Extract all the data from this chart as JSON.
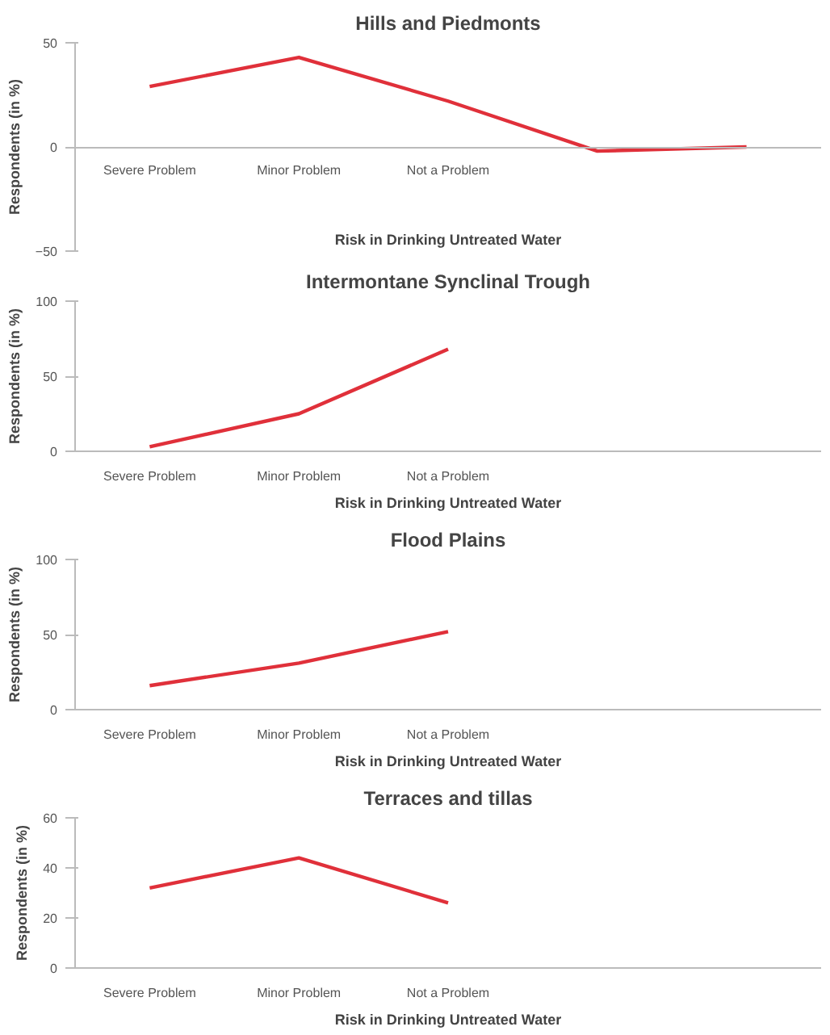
{
  "chart_data": [
    {
      "type": "line",
      "title": "Hills and Piedmonts",
      "xlabel": "Risk in Drinking Untreated Water",
      "ylabel": "Respondents (in %)",
      "categories": [
        "Severe Problem",
        "Minor Problem",
        "Not a Problem",
        null,
        null
      ],
      "series": [
        {
          "color": "#e0303a",
          "values": [
            29,
            43,
            22,
            -2,
            0
          ]
        }
      ],
      "ylim": [
        -50,
        50
      ],
      "yticks": [
        -50,
        0,
        50
      ]
    },
    {
      "type": "line",
      "title": "Intermontane Synclinal Trough",
      "xlabel": "Risk in Drinking Untreated Water",
      "ylabel": "Respondents (in %)",
      "categories": [
        "Severe Problem",
        "Minor Problem",
        "Not a Problem",
        null,
        null
      ],
      "series": [
        {
          "color": "#e0303a",
          "values": [
            3,
            25,
            68,
            null,
            null
          ]
        }
      ],
      "ylim": [
        0,
        100
      ],
      "yticks": [
        0,
        50,
        100
      ]
    },
    {
      "type": "line",
      "title": "Flood Plains",
      "xlabel": "Risk in Drinking Untreated Water",
      "ylabel": "Respondents (in %)",
      "categories": [
        "Severe Problem",
        "Minor Problem",
        "Not a Problem",
        null,
        null
      ],
      "series": [
        {
          "color": "#e0303a",
          "values": [
            16,
            31,
            52,
            null,
            null
          ]
        }
      ],
      "ylim": [
        0,
        100
      ],
      "yticks": [
        0,
        50,
        100
      ]
    },
    {
      "type": "line",
      "title": "Terraces and tillas",
      "xlabel": "Risk in Drinking Untreated Water",
      "ylabel": "Respondents (in %)",
      "categories": [
        "Severe Problem",
        "Minor Problem",
        "Not a Problem",
        null,
        null
      ],
      "series": [
        {
          "color": "#e0303a",
          "values": [
            32,
            44,
            26,
            null,
            null
          ]
        }
      ],
      "ylim": [
        0,
        60
      ],
      "yticks": [
        0,
        20,
        40,
        60
      ]
    }
  ]
}
